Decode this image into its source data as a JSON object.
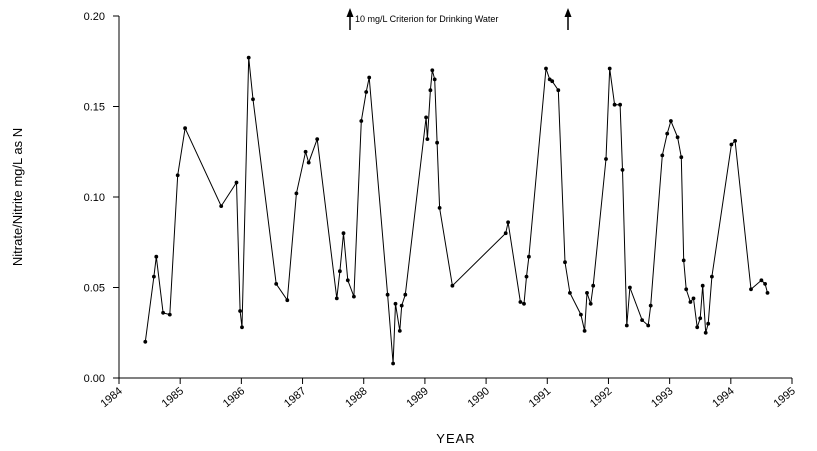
{
  "chart_data": {
    "type": "line",
    "title": "",
    "xlabel": "YEAR",
    "ylabel": "Nitrate/Nitrite mg/L as N",
    "xlim": [
      1984,
      1995
    ],
    "ylim": [
      0,
      0.2
    ],
    "x_ticks": [
      "1984",
      "1985",
      "1986",
      "1987",
      "1988",
      "1989",
      "1990",
      "1991",
      "1992",
      "1993",
      "1994",
      "1995"
    ],
    "y_ticks": [
      "0.00",
      "0.05",
      "0.10",
      "0.15",
      "0.20"
    ],
    "grid": false,
    "annotation": "10 mg/L Criterion for Drinking Water",
    "series": [
      {
        "color": "#000000",
        "points": [
          [
            1984.43,
            0.02
          ],
          [
            1984.57,
            0.056
          ],
          [
            1984.61,
            0.067
          ],
          [
            1984.72,
            0.036
          ],
          [
            1984.83,
            0.035
          ],
          [
            1984.96,
            0.112
          ],
          [
            1985.08,
            0.138
          ],
          [
            1985.67,
            0.095
          ],
          [
            1985.92,
            0.108
          ],
          [
            1985.98,
            0.037
          ],
          [
            1986.01,
            0.028
          ],
          [
            1986.12,
            0.177
          ],
          [
            1986.19,
            0.154
          ],
          [
            1986.57,
            0.052
          ],
          [
            1986.75,
            0.043
          ],
          [
            1986.9,
            0.102
          ],
          [
            1987.05,
            0.125
          ],
          [
            1987.1,
            0.119
          ],
          [
            1987.24,
            0.132
          ],
          [
            1987.56,
            0.044
          ],
          [
            1987.61,
            0.059
          ],
          [
            1987.67,
            0.08
          ],
          [
            1987.74,
            0.054
          ],
          [
            1987.84,
            0.045
          ],
          [
            1987.96,
            0.142
          ],
          [
            1988.04,
            0.158
          ],
          [
            1988.09,
            0.166
          ],
          [
            1988.39,
            0.046
          ],
          [
            1988.48,
            0.008
          ],
          [
            1988.52,
            0.041
          ],
          [
            1988.59,
            0.026
          ],
          [
            1988.62,
            0.04
          ],
          [
            1988.68,
            0.046
          ],
          [
            1989.02,
            0.144
          ],
          [
            1989.04,
            0.132
          ],
          [
            1989.09,
            0.159
          ],
          [
            1989.12,
            0.17
          ],
          [
            1989.16,
            0.165
          ],
          [
            1989.2,
            0.13
          ],
          [
            1989.24,
            0.094
          ],
          [
            1989.45,
            0.051
          ],
          [
            1990.32,
            0.08
          ],
          [
            1990.36,
            0.086
          ],
          [
            1990.56,
            0.042
          ],
          [
            1990.62,
            0.041
          ],
          [
            1990.66,
            0.056
          ],
          [
            1990.7,
            0.067
          ],
          [
            1990.98,
            0.171
          ],
          [
            1991.04,
            0.165
          ],
          [
            1991.08,
            0.164
          ],
          [
            1991.18,
            0.159
          ],
          [
            1991.29,
            0.064
          ],
          [
            1991.37,
            0.047
          ],
          [
            1991.55,
            0.035
          ],
          [
            1991.61,
            0.026
          ],
          [
            1991.65,
            0.047
          ],
          [
            1991.71,
            0.041
          ],
          [
            1991.75,
            0.051
          ],
          [
            1991.96,
            0.121
          ],
          [
            1992.02,
            0.171
          ],
          [
            1992.1,
            0.151
          ],
          [
            1992.19,
            0.151
          ],
          [
            1992.23,
            0.115
          ],
          [
            1992.3,
            0.029
          ],
          [
            1992.35,
            0.05
          ],
          [
            1992.55,
            0.032
          ],
          [
            1992.65,
            0.029
          ],
          [
            1992.69,
            0.04
          ],
          [
            1992.88,
            0.123
          ],
          [
            1992.96,
            0.135
          ],
          [
            1993.02,
            0.142
          ],
          [
            1993.13,
            0.133
          ],
          [
            1993.19,
            0.122
          ],
          [
            1993.23,
            0.065
          ],
          [
            1993.27,
            0.049
          ],
          [
            1993.34,
            0.042
          ],
          [
            1993.39,
            0.044
          ],
          [
            1993.45,
            0.028
          ],
          [
            1993.5,
            0.033
          ],
          [
            1993.54,
            0.051
          ],
          [
            1993.59,
            0.025
          ],
          [
            1993.63,
            0.03
          ],
          [
            1993.69,
            0.056
          ],
          [
            1994.01,
            0.129
          ],
          [
            1994.07,
            0.131
          ],
          [
            1994.33,
            0.049
          ],
          [
            1994.5,
            0.054
          ],
          [
            1994.56,
            0.052
          ],
          [
            1994.6,
            0.047
          ]
        ]
      }
    ]
  }
}
